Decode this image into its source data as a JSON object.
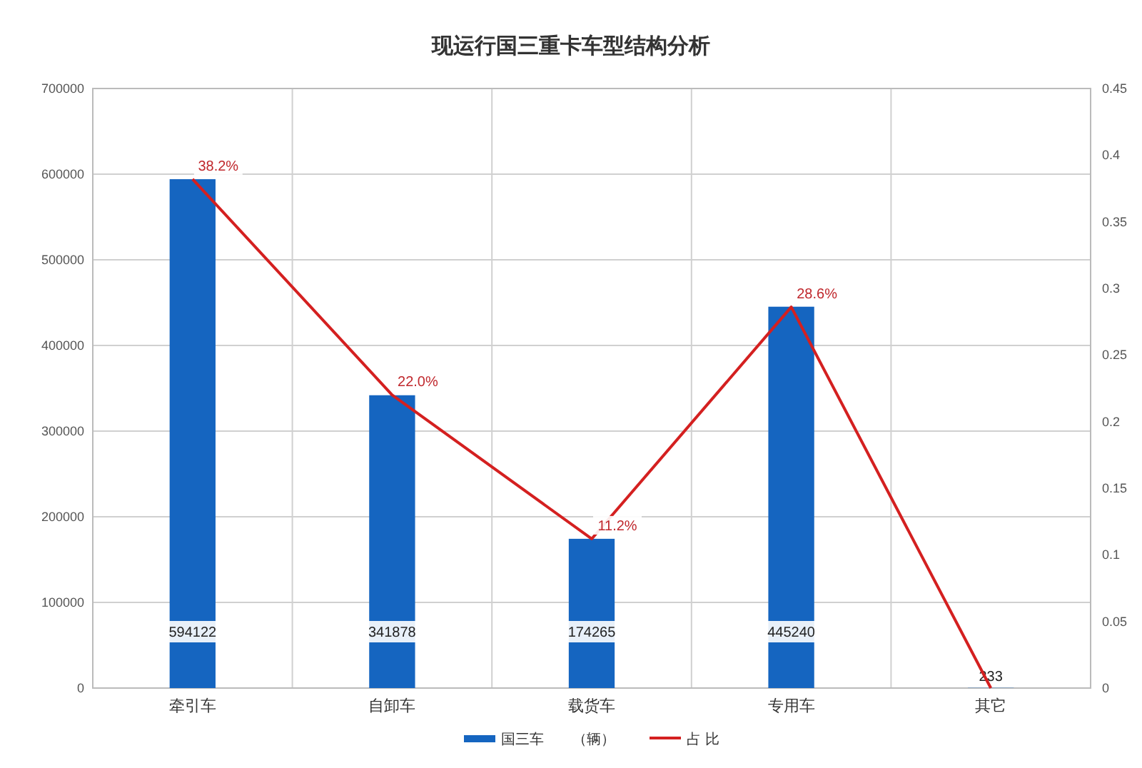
{
  "chart_data": {
    "type": "bar",
    "title": "现运行国三重卡车型结构分析",
    "categories": [
      "牵引车",
      "自卸车",
      "载货车",
      "专用车",
      "其它"
    ],
    "series": [
      {
        "name": "国三车　　（辆）",
        "color": "#1565c0",
        "values": [
          594122,
          341878,
          174265,
          445240,
          233
        ],
        "value_labels": [
          "594122",
          "341878",
          "174265",
          "445240",
          "233"
        ]
      },
      {
        "name": "占 比",
        "type": "line",
        "axis": "y2",
        "color": "#d42020",
        "values": [
          0.382,
          0.22,
          0.112,
          0.286,
          0
        ],
        "value_labels": [
          "38.2%",
          "22.0%",
          "11.2%",
          "28.6%",
          null
        ]
      }
    ],
    "ylim": [
      0,
      700000
    ],
    "yticks": [
      0,
      100000,
      200000,
      300000,
      400000,
      500000,
      600000,
      700000
    ],
    "y2lim": [
      0,
      0.45
    ],
    "y2ticks": [
      0,
      0.05,
      0.1,
      0.15,
      0.2,
      0.25,
      0.3,
      0.35,
      0.4,
      0.45
    ],
    "grid": true,
    "legend": "bottom",
    "marker": "none"
  }
}
